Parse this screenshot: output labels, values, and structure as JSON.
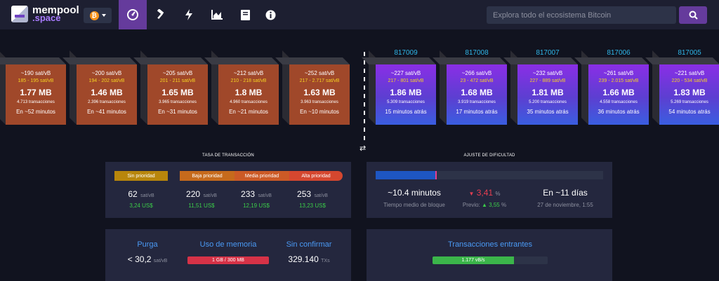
{
  "header": {
    "logo_line1": "mempool",
    "logo_line2": ".space",
    "network_symbol": "₿",
    "nav_icons": [
      "dashboard-icon",
      "hammer-icon",
      "lightning-icon",
      "graphs-icon",
      "docs-icon",
      "info-icon"
    ],
    "search_placeholder": "Explora todo el ecosistema Bitcoin"
  },
  "pending_blocks": [
    {
      "fee": "~190 sat/vB",
      "range": "185 - 195 sat/vB",
      "size": "1.77 MB",
      "tx": "4.713 transacciones",
      "eta": "En ~52 minutos"
    },
    {
      "fee": "~200 sat/vB",
      "range": "194 - 202 sat/vB",
      "size": "1.46 MB",
      "tx": "2.396 transacciones",
      "eta": "En ~41 minutos"
    },
    {
      "fee": "~205 sat/vB",
      "range": "201 - 211 sat/vB",
      "size": "1.65 MB",
      "tx": "3.965 transacciones",
      "eta": "En ~31 minutos"
    },
    {
      "fee": "~212 sat/vB",
      "range": "210 - 218 sat/vB",
      "size": "1.8 MB",
      "tx": "4.960 transacciones",
      "eta": "En ~21 minutos"
    },
    {
      "fee": "~252 sat/vB",
      "range": "217 - 2.717 sat/vB",
      "size": "1.63 MB",
      "tx": "3.963 transacciones",
      "eta": "En ~10 minutos"
    }
  ],
  "mined_blocks": [
    {
      "height": "817009",
      "fee": "~227 sat/vB",
      "range": "217 - 801 sat/vB",
      "size": "1.86 MB",
      "tx": "5.309 transacciones",
      "ago": "15 minutos atrás"
    },
    {
      "height": "817008",
      "fee": "~266 sat/vB",
      "range": "23 - 472 sat/vB",
      "size": "1.68 MB",
      "tx": "3.919 transacciones",
      "ago": "17 minutos atrás"
    },
    {
      "height": "817007",
      "fee": "~232 sat/vB",
      "range": "227 - 889 sat/vB",
      "size": "1.81 MB",
      "tx": "5.200 transacciones",
      "ago": "35 minutos atrás"
    },
    {
      "height": "817006",
      "fee": "~261 sat/vB",
      "range": "239 - 2.015 sat/vB",
      "size": "1.66 MB",
      "tx": "4.558 transacciones",
      "ago": "36 minutos atrás"
    },
    {
      "height": "817005",
      "fee": "~221 sat/vB",
      "range": "220 - 534 sat/vB",
      "size": "1.83 MB",
      "tx": "5.269 transacciones",
      "ago": "54 minutos atrás"
    }
  ],
  "fees": {
    "title": "TASA DE TRANSACCIÓN",
    "labels": [
      "Sin prioridad",
      "Baja prioridad",
      "Media prioridad",
      "Alta prioridad"
    ],
    "values": [
      "62",
      "220",
      "233",
      "253"
    ],
    "unit": "sat/vB",
    "usd": [
      "3,24 US$",
      "11,51 US$",
      "12,19 US$",
      "13,23 US$"
    ],
    "colors": [
      "#b8860b",
      "#c66a1c",
      "#cc5a26",
      "#d5472f"
    ]
  },
  "difficulty": {
    "title": "AJUSTE DE DIFICULTAD",
    "progress_fraction": 0.27,
    "avg_value": "~10.4 minutos",
    "avg_label": "Tiempo medio de bloque",
    "change_arrow": "▼",
    "change_value": "3,41",
    "change_unit": "%",
    "prev_label": "Previo:",
    "prev_arrow": "▲",
    "prev_value": "3,55",
    "prev_unit": "%",
    "eta_value": "En ~11 días",
    "eta_date": "27 de noviembre, 1:55"
  },
  "mempool_stats": {
    "purge_label": "Purga",
    "purge_value": "< 30,2",
    "purge_unit": "sat/vB",
    "memory_label": "Uso de memoria",
    "memory_value": "1 GB / 300 MB",
    "unconfirmed_label": "Sin confirmar",
    "unconfirmed_value": "329.140",
    "unconfirmed_unit": "TXs"
  },
  "incoming": {
    "label": "Transacciones entrantes",
    "rate": "1.177 vB/s"
  }
}
